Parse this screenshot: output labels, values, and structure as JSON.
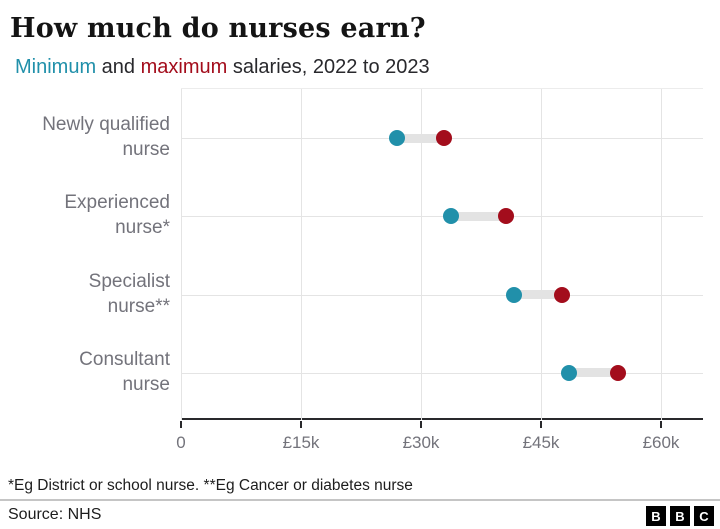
{
  "header": {
    "title": "How much do nurses earn?",
    "subtitle": {
      "min_word": "Minimum",
      "and_word": " and ",
      "max_word": "maximum",
      "rest": " salaries, 2022 to 2023"
    }
  },
  "chart_data": {
    "type": "scatter",
    "subtype": "dumbbell-range",
    "title": "How much do nurses earn?",
    "subtitle": "Minimum and maximum salaries, 2022 to 2023",
    "categories": [
      "Newly qualified nurse",
      "Experienced nurse*",
      "Specialist nurse**",
      "Consultant nurse"
    ],
    "category_lines": [
      [
        "Newly qualified",
        "nurse"
      ],
      [
        "Experienced",
        "nurse*"
      ],
      [
        "Specialist",
        "nurse**"
      ],
      [
        "Consultant",
        "nurse"
      ]
    ],
    "series": [
      {
        "name": "Minimum",
        "values": [
          27055,
          33706,
          41659,
          48526
        ],
        "color": "#2190aa"
      },
      {
        "name": "Maximum",
        "values": [
          32934,
          40588,
          47672,
          54619
        ],
        "color": "#a30d1c"
      }
    ],
    "x_ticks": [
      {
        "value": 0,
        "label": "0"
      },
      {
        "value": 15000,
        "label": "£15k"
      },
      {
        "value": 30000,
        "label": "£30k"
      },
      {
        "value": 45000,
        "label": "£45k"
      },
      {
        "value": 60000,
        "label": "£60k"
      }
    ],
    "xlim": [
      0,
      65250
    ],
    "xlabel": "",
    "ylabel": "",
    "grid": true,
    "legend_position": "inline-in-subtitle"
  },
  "footnote": "*Eg District or school nurse. **Eg Cancer or diabetes nurse",
  "source": "Source: NHS",
  "logo": {
    "letters": [
      "B",
      "B",
      "C"
    ]
  },
  "colors": {
    "minimum": "#2190aa",
    "maximum": "#a30d1c",
    "connector": "#e3e3e3",
    "gridline": "#e4e4e4",
    "axis": "#29292c",
    "label_gray": "#73737b"
  }
}
